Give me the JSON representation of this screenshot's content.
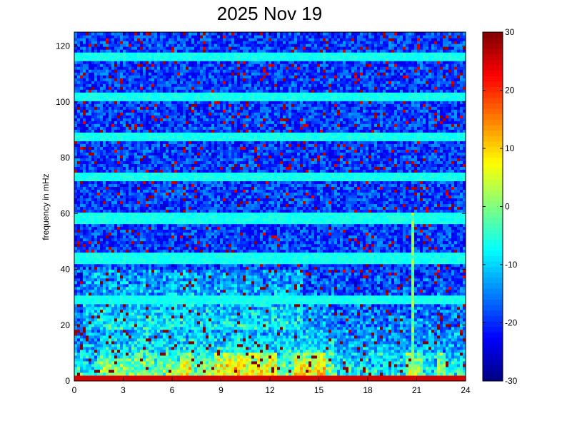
{
  "chart_data": {
    "type": "heatmap",
    "title": "2025 Nov 19",
    "xlabel": "",
    "ylabel": "frequency in mHz",
    "xlim": [
      0,
      24
    ],
    "ylim": [
      0,
      125
    ],
    "x_ticks": [
      0,
      3,
      6,
      9,
      12,
      15,
      18,
      21,
      24
    ],
    "x_tick_labels": [
      "0",
      "3",
      "6",
      "9",
      "12",
      "15",
      "18",
      "21",
      "24"
    ],
    "y_ticks": [
      0,
      20,
      40,
      60,
      80,
      100,
      120
    ],
    "y_tick_labels": [
      "0",
      "20",
      "40",
      "60",
      "80",
      "100",
      "120"
    ],
    "colorbar": {
      "range": [
        -30,
        30
      ],
      "ticks": [
        -30,
        -20,
        -10,
        0,
        10,
        20,
        30
      ],
      "tick_labels": [
        "-30",
        "-20",
        "-10",
        "0",
        "10",
        "20",
        "30"
      ],
      "colormap": "jet"
    },
    "features": {
      "horizontal_bands_mHz": [
        116.5,
        102,
        87.5,
        73,
        58.5,
        44,
        29.5
      ],
      "low_freq_strong_band_hours": [
        [
          6.5,
          7.2
        ],
        [
          8.5,
          12.5
        ],
        [
          13.5,
          15.5
        ],
        [
          20.4,
          21.4
        ],
        [
          22.3,
          22.8
        ]
      ],
      "vertical_streak_hours": [
        20.8
      ]
    }
  }
}
